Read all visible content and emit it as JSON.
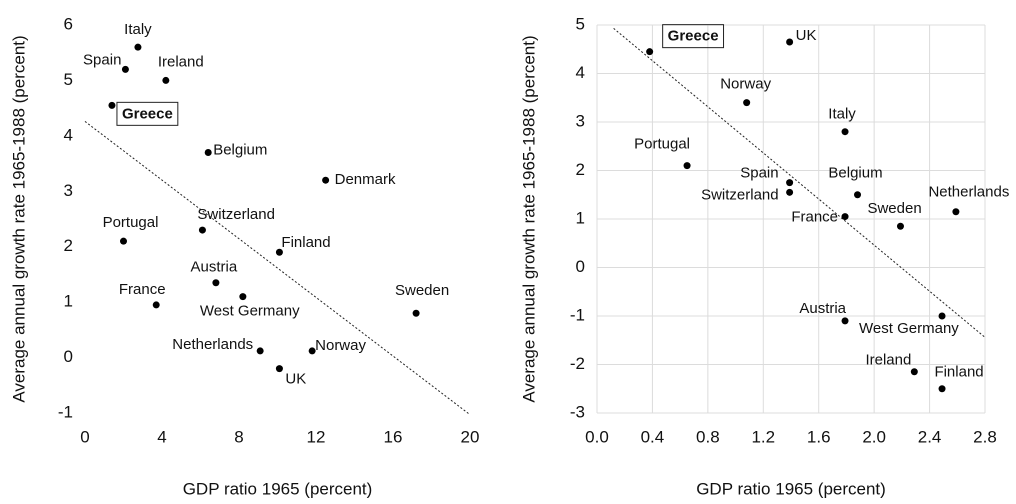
{
  "chart_data": [
    {
      "type": "scatter",
      "x_label": "GDP ratio 1965 (percent)",
      "y_label": "Average annual growth rate 1965-1988 (percent)",
      "xlim": [
        0,
        20
      ],
      "xticks": [
        0,
        4,
        8,
        12,
        16,
        20
      ],
      "ylim": [
        -1,
        6
      ],
      "yticks": [
        -1,
        0,
        1,
        2,
        3,
        4,
        5,
        6
      ],
      "grid": false,
      "color": "#000000",
      "series": [
        {
          "labels": [
            "Italy",
            "Spain",
            "Ireland",
            "Greece",
            "Belgium",
            "Denmark",
            "Portugal",
            "Switzerland",
            "Finland",
            "Austria",
            "West Germany",
            "France",
            "Sweden",
            "Netherlands",
            "Norway",
            "UK"
          ],
          "x": [
            2.75,
            2.1,
            4.2,
            1.4,
            6.4,
            12.5,
            2.0,
            6.1,
            10.1,
            6.8,
            8.2,
            3.7,
            17.2,
            9.1,
            11.8,
            10.1
          ],
          "y": [
            5.6,
            5.2,
            5.0,
            4.55,
            3.7,
            3.2,
            2.1,
            2.3,
            1.9,
            1.35,
            1.1,
            0.95,
            0.8,
            0.12,
            0.12,
            -0.2
          ]
        }
      ],
      "trendline": {
        "x": [
          0,
          20
        ],
        "y": [
          4.26,
          -1.03
        ]
      }
    },
    {
      "type": "scatter",
      "x_label": "GDP ratio 1965 (percent)",
      "y_label": "Average annual growth rate 1965-1988 (percent)",
      "xlim": [
        0,
        2.8
      ],
      "xticks": [
        {
          "value": 0,
          "label": "0.0"
        },
        0.4,
        0.8,
        1.2,
        1.6,
        {
          "value": 2,
          "label": "2.0"
        },
        2.4,
        2.8
      ],
      "ylim": [
        -3,
        5
      ],
      "yticks": [
        -3,
        -2,
        -1,
        0,
        1,
        2,
        3,
        4,
        5
      ],
      "grid": true,
      "color": "#000000",
      "series": [
        {
          "labels": [
            "Greece",
            "UK",
            "Norway",
            "Italy",
            "Portugal",
            "Spain",
            "Switzerland",
            "Belgium",
            "France",
            "Sweden",
            "Netherlands",
            "Austria",
            "West Germany",
            "Ireland",
            "Finland"
          ],
          "x": [
            0.38,
            1.39,
            1.08,
            1.79,
            0.65,
            1.39,
            1.39,
            1.88,
            1.79,
            2.19,
            2.59,
            1.79,
            2.49,
            2.29,
            2.49
          ],
          "y": [
            4.45,
            4.65,
            3.4,
            2.8,
            2.1,
            1.75,
            1.55,
            1.5,
            1.05,
            0.85,
            1.15,
            -1.1,
            -1.0,
            -2.15,
            -2.5
          ]
        }
      ],
      "trendline": {
        "x": [
          0.12,
          2.8
        ],
        "y": [
          4.93,
          -1.44
        ]
      }
    }
  ]
}
